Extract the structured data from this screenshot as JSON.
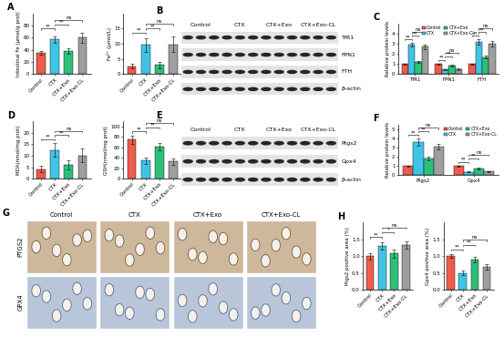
{
  "chart_data": [
    {
      "panel": "A",
      "type": "bar",
      "y_label": "Intestinal Fe (μmol/g prot)",
      "categories": [
        "Control",
        "CTX",
        "CTX+Exo",
        "CTX+Exo-CL"
      ],
      "values": [
        35,
        57,
        38,
        60
      ],
      "errors": [
        3,
        5,
        4,
        8
      ],
      "colors": [
        "#ef5b4c",
        "#40c4e6",
        "#2ec07a",
        "#9e9e9e"
      ],
      "ylim": [
        0,
        100
      ],
      "yticks": [
        0,
        20,
        40,
        60,
        80
      ],
      "annotations": [
        {
          "text": "**",
          "between": [
            0,
            1
          ]
        },
        {
          "text": "**",
          "between": [
            1,
            2
          ]
        },
        {
          "text": "ns",
          "between": [
            1,
            3
          ]
        }
      ]
    },
    {
      "type": "bar",
      "y_label": "Fe²⁺ (μmol/L)",
      "categories": [
        "Control",
        "CTX",
        "CTX+Exo",
        "CTX+Exo-CL"
      ],
      "values": [
        2.6,
        9.6,
        3.0,
        9.8
      ],
      "errors": [
        0.8,
        2.2,
        1.0,
        2.5
      ],
      "colors": [
        "#ef5b4c",
        "#40c4e6",
        "#2ec07a",
        "#9e9e9e"
      ],
      "ylim": [
        0,
        20
      ],
      "yticks": [
        0,
        5,
        10,
        15
      ],
      "annotations": [
        {
          "text": "**",
          "between": [
            0,
            1
          ]
        },
        {
          "text": "**",
          "between": [
            1,
            2
          ]
        },
        {
          "text": "ns",
          "between": [
            1,
            3
          ]
        }
      ]
    },
    {
      "panel": "B",
      "type": "blot",
      "lanes": [
        "Control",
        "CTX",
        "CTX+Exo",
        "CTX+Exo-CL"
      ],
      "rows": [
        "TfR1",
        "FPN1",
        "FTH",
        "β-actin"
      ]
    },
    {
      "panel": "C",
      "type": "bar",
      "y_label": "Relative protein levels",
      "categories": [
        "TfR1",
        "FPN1",
        "FTH"
      ],
      "series": [
        {
          "name": "Control",
          "color": "#ef5b4c",
          "values": [
            1,
            1,
            1
          ],
          "errors": [
            0.05,
            0.05,
            0.05
          ]
        },
        {
          "name": "CTX",
          "color": "#40c4e6",
          "values": [
            2.9,
            0.45,
            3.2
          ],
          "errors": [
            0.2,
            0.08,
            0.25
          ]
        },
        {
          "name": "CTX+Exo",
          "color": "#2ec07a",
          "values": [
            1.2,
            0.85,
            1.7
          ],
          "errors": [
            0.1,
            0.1,
            0.15
          ]
        },
        {
          "name": "CTX+Exo-CL",
          "color": "#9e9e9e",
          "values": [
            2.7,
            0.5,
            3.0
          ],
          "errors": [
            0.25,
            0.08,
            0.3
          ]
        }
      ],
      "legend": "upper center",
      "ylim": [
        0,
        5
      ],
      "yticks": [
        0,
        1,
        2,
        3,
        4
      ],
      "annotations": [
        {
          "text": "**",
          "category": 0,
          "between": [
            0,
            1
          ]
        },
        {
          "text": "**",
          "category": 0,
          "between": [
            1,
            2
          ]
        },
        {
          "text": "ns",
          "category": 0,
          "between": [
            1,
            3
          ]
        },
        {
          "text": "**",
          "category": 1,
          "between": [
            0,
            1
          ]
        },
        {
          "text": "**",
          "category": 1,
          "between": [
            1,
            2
          ]
        },
        {
          "text": "ns",
          "category": 1,
          "between": [
            1,
            3
          ]
        },
        {
          "text": "**",
          "category": 2,
          "between": [
            0,
            1
          ]
        },
        {
          "text": "**",
          "category": 2,
          "between": [
            1,
            2
          ]
        },
        {
          "text": "ns",
          "category": 2,
          "between": [
            1,
            3
          ]
        }
      ]
    },
    {
      "panel": "D",
      "type": "bar",
      "y_label": "MDA(nmol/mg prot)",
      "categories": [
        "Control",
        "CTX",
        "CTX+Exo",
        "CTX+Exo-CL"
      ],
      "values": [
        4.2,
        12.5,
        6.0,
        10.0
      ],
      "errors": [
        1.5,
        3,
        2,
        3
      ],
      "colors": [
        "#ef5b4c",
        "#40c4e6",
        "#2ec07a",
        "#9e9e9e"
      ],
      "ylim": [
        0,
        25
      ],
      "yticks": [
        0,
        5,
        10,
        15,
        20
      ],
      "annotations": [
        {
          "text": "**",
          "between": [
            0,
            1
          ]
        },
        {
          "text": "**",
          "between": [
            1,
            2
          ]
        },
        {
          "text": "ns",
          "between": [
            1,
            3
          ]
        }
      ]
    },
    {
      "type": "bar",
      "y_label": "GSH(nmol/mg prot)",
      "categories": [
        "Control",
        "CTX",
        "CTX+Exo",
        "CTX+Exo-CL"
      ],
      "values": [
        75,
        35,
        62,
        33
      ],
      "errors": [
        8,
        6,
        7,
        6
      ],
      "colors": [
        "#ef5b4c",
        "#40c4e6",
        "#2ec07a",
        "#9e9e9e"
      ],
      "ylim": [
        0,
        110
      ],
      "yticks": [
        0,
        20,
        40,
        60,
        80,
        100
      ],
      "annotations": [
        {
          "text": "**",
          "between": [
            0,
            1
          ]
        },
        {
          "text": "**",
          "between": [
            1,
            2
          ]
        },
        {
          "text": "ns",
          "between": [
            1,
            3
          ]
        }
      ]
    },
    {
      "panel": "E",
      "type": "blot",
      "lanes": [
        "Control",
        "CTX",
        "CTX+Exo",
        "CTX+Exo-CL"
      ],
      "rows": [
        "Ptgs2",
        "Gpx4",
        "β-actin"
      ]
    },
    {
      "panel": "F",
      "type": "bar",
      "y_label": "Relative protein levels",
      "categories": [
        "Ptgs2",
        "Gpx4"
      ],
      "series": [
        {
          "name": "Control",
          "color": "#ef5b4c",
          "values": [
            1,
            1
          ],
          "errors": [
            0.05,
            0.05
          ]
        },
        {
          "name": "CTX",
          "color": "#40c4e6",
          "values": [
            3.6,
            0.35
          ],
          "errors": [
            0.4,
            0.05
          ]
        },
        {
          "name": "CTX+Exo",
          "color": "#2ec07a",
          "values": [
            1.8,
            0.75
          ],
          "errors": [
            0.2,
            0.08
          ]
        },
        {
          "name": "CTX+Exo-CL",
          "color": "#9e9e9e",
          "values": [
            3.1,
            0.4
          ],
          "errors": [
            0.3,
            0.06
          ]
        }
      ],
      "legend": "upper right",
      "ylim": [
        0,
        5.5
      ],
      "yticks": [
        0,
        1,
        2,
        3,
        4,
        5
      ],
      "annotations": [
        {
          "text": "**",
          "category": 0,
          "between": [
            0,
            1
          ]
        },
        {
          "text": "**",
          "category": 0,
          "between": [
            1,
            2
          ]
        },
        {
          "text": "ns",
          "category": 0,
          "between": [
            1,
            3
          ]
        },
        {
          "text": "**",
          "category": 1,
          "between": [
            0,
            1
          ]
        },
        {
          "text": "**",
          "category": 1,
          "between": [
            1,
            2
          ]
        },
        {
          "text": "ns",
          "category": 1,
          "between": [
            1,
            3
          ]
        }
      ]
    },
    {
      "panel": "G",
      "type": "image_grid",
      "columns": [
        "Control",
        "CTX",
        "CTX+Exo",
        "CTX+Exo-CL"
      ],
      "rows": [
        "PTGS2",
        "GPX4"
      ]
    },
    {
      "panel": "H",
      "type": "bar",
      "y_label": "Ptgs2 positive area (%)",
      "categories": [
        "Control",
        "CTX",
        "CTX+Exo",
        "CTX+Exo-CL"
      ],
      "values": [
        1.0,
        1.3,
        1.08,
        1.33
      ],
      "errors": [
        0.1,
        0.1,
        0.12,
        0.1
      ],
      "colors": [
        "#ef5b4c",
        "#40c4e6",
        "#2ec07a",
        "#9e9e9e"
      ],
      "ylim": [
        0,
        2
      ],
      "yticks": [
        {
          "value": 0,
          "label": "0.0"
        },
        {
          "value": 0.5,
          "label": "0.5"
        },
        {
          "value": 1,
          "label": "1.0"
        },
        {
          "value": 1.5,
          "label": "1.5"
        }
      ],
      "annotations": [
        {
          "text": "**",
          "between": [
            0,
            1
          ]
        },
        {
          "text": "*",
          "between": [
            1,
            2
          ]
        },
        {
          "text": "ns",
          "between": [
            1,
            3
          ]
        }
      ]
    },
    {
      "type": "bar",
      "y_label": "Gpx4 positive area (%)",
      "categories": [
        "Control",
        "CTX",
        "CTX+Exo",
        "CTX+Exo-CL"
      ],
      "values": [
        1.0,
        0.5,
        0.9,
        0.68
      ],
      "errors": [
        0.06,
        0.06,
        0.08,
        0.08
      ],
      "colors": [
        "#ef5b4c",
        "#40c4e6",
        "#2ec07a",
        "#9e9e9e"
      ],
      "ylim": [
        0,
        2
      ],
      "yticks": [
        {
          "value": 0,
          "label": "0.0"
        },
        {
          "value": 0.5,
          "label": "0.5"
        },
        {
          "value": 1,
          "label": "1.0"
        },
        {
          "value": 1.5,
          "label": "1.5"
        }
      ],
      "annotations": [
        {
          "text": "**",
          "between": [
            0,
            1
          ]
        },
        {
          "text": "**",
          "between": [
            1,
            2
          ]
        },
        {
          "text": "ns",
          "between": [
            1,
            3
          ]
        }
      ]
    }
  ]
}
